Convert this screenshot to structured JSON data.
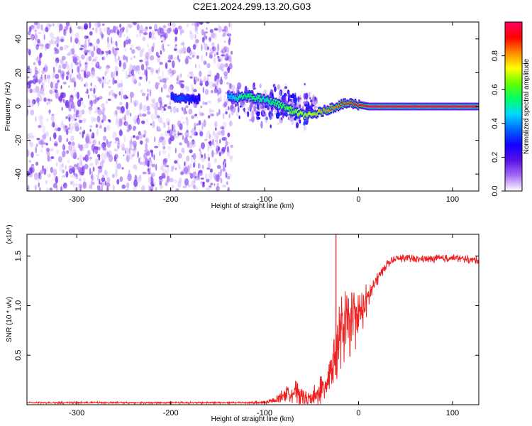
{
  "figure_title": "C2E1.2024.299.13.20.G03",
  "colors": {
    "snr_line": "#ee2222",
    "spectrum_scatter": "#7a2df0",
    "ridge_core": "#ff2200",
    "colormap": [
      "#ffffff",
      "#a46cf4",
      "#5a10e6",
      "#1200ff",
      "#0066ff",
      "#00d8ff",
      "#00ff66",
      "#66ff00",
      "#ffff00",
      "#ff8800",
      "#ff0000",
      "#ff0066"
    ]
  },
  "chart_data": [
    {
      "type": "heatmap",
      "title": "C2E1.2024.299.13.20.G03",
      "xlabel": "Height of straight line (km)",
      "ylabel": "Frequency (Hz)",
      "xlim": [
        -353,
        128
      ],
      "ylim": [
        -50,
        50
      ],
      "xticks": [
        -300,
        -200,
        -100,
        0,
        100
      ],
      "yticks": [
        -40,
        -20,
        0,
        20,
        40
      ],
      "colorbar": {
        "label": "Normalized spectral amplitude",
        "range": [
          0,
          1
        ],
        "ticks": [
          "0.0",
          "0.2",
          "0.4",
          "0.6",
          "0.8"
        ]
      },
      "regions": [
        {
          "x_range": [
            -353,
            -135
          ],
          "freq_range": [
            -50,
            50
          ],
          "amplitude": 0.1,
          "description": "broadband noise"
        },
        {
          "x_range": [
            -135,
            -45
          ],
          "freq_range": [
            -17,
            14
          ],
          "amplitude": 0.4,
          "description": "spread central signal"
        }
      ],
      "ridge": {
        "x": [
          -200,
          -190,
          -180,
          -170,
          -140,
          -130,
          -120,
          -110,
          -100,
          -90,
          -80,
          -70,
          -60,
          -50,
          -40,
          -30,
          -20,
          -10,
          0,
          10,
          50,
          100,
          128
        ],
        "freq": [
          6,
          5,
          4,
          5,
          6,
          5,
          6,
          5,
          4,
          2,
          0,
          -3,
          -5,
          -5,
          -3,
          -1,
          1,
          2,
          1,
          0,
          0,
          0,
          0
        ],
        "amplitude": [
          0.3,
          0.35,
          0.3,
          0.25,
          0.4,
          0.5,
          0.55,
          0.55,
          0.5,
          0.55,
          0.6,
          0.65,
          0.7,
          0.75,
          0.8,
          0.82,
          0.85,
          0.88,
          0.92,
          1.0,
          1.0,
          1.0,
          1.0
        ]
      }
    },
    {
      "type": "line",
      "xlabel": "Height of straight line (km)",
      "ylabel": "SNR (10 * v/v)",
      "y_multiplier": "(x10⁴)",
      "xlim": [
        -353,
        128
      ],
      "ylim": [
        0,
        1.72
      ],
      "xticks": [
        -300,
        -200,
        -100,
        0,
        100
      ],
      "yticks": [
        0.5,
        1.0,
        1.5
      ],
      "series": [
        {
          "x": [
            -353,
            -300,
            -250,
            -200,
            -150,
            -120,
            -100,
            -90,
            -80,
            -70,
            -60,
            -50,
            -40,
            -30,
            -25,
            -20,
            -15,
            -10,
            -5,
            0,
            5,
            10,
            15,
            20,
            25,
            30,
            40,
            50,
            60,
            80,
            100,
            128
          ],
          "y": [
            0.02,
            0.02,
            0.02,
            0.02,
            0.02,
            0.02,
            0.02,
            0.04,
            0.1,
            0.13,
            0.09,
            0.06,
            0.12,
            0.35,
            0.55,
            0.72,
            0.78,
            0.82,
            0.85,
            0.9,
            0.98,
            1.08,
            1.18,
            1.27,
            1.35,
            1.42,
            1.47,
            1.48,
            1.47,
            1.47,
            1.48,
            1.46
          ],
          "noise": [
            0.01,
            0.01,
            0.01,
            0.01,
            0.01,
            0.01,
            0.02,
            0.03,
            0.07,
            0.12,
            0.14,
            0.1,
            0.18,
            0.28,
            0.36,
            0.38,
            0.38,
            0.36,
            0.34,
            0.28,
            0.22,
            0.16,
            0.12,
            0.08,
            0.06,
            0.05,
            0.04,
            0.04,
            0.04,
            0.04,
            0.04,
            0.04
          ]
        }
      ],
      "spike": {
        "x": -24,
        "y": 1.72
      }
    }
  ]
}
